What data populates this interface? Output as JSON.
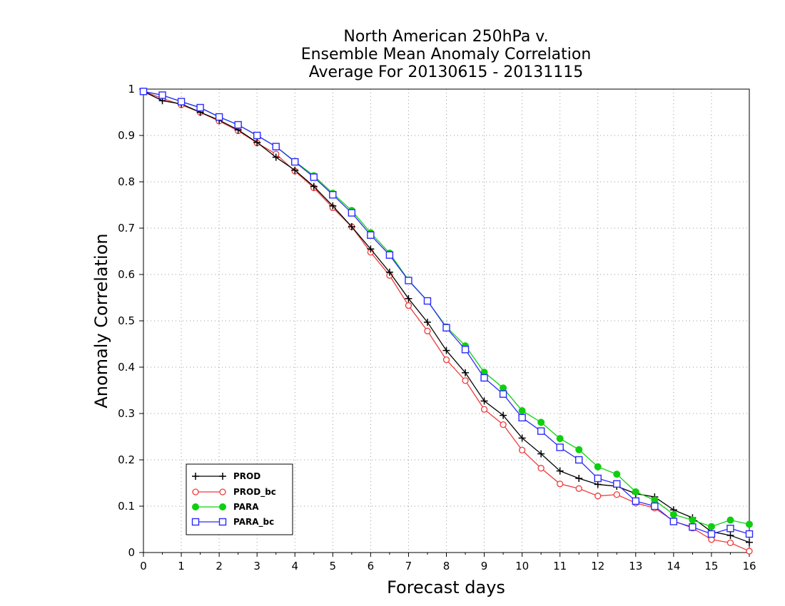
{
  "chart_data": {
    "type": "line",
    "title": [
      "North American 250hPa v.",
      "Ensemble Mean Anomaly Correlation",
      "Average For 20130615 - 20131115"
    ],
    "xlabel": "Forecast days",
    "ylabel": "Anomaly Correlation",
    "xlim": [
      0,
      16
    ],
    "ylim": [
      0,
      1
    ],
    "x_ticks": [
      "0",
      "1",
      "2",
      "3",
      "4",
      "5",
      "6",
      "7",
      "8",
      "9",
      "10",
      "11",
      "12",
      "13",
      "14",
      "15",
      "16"
    ],
    "y_ticks": [
      "0",
      "0.1",
      "0.2",
      "0.3",
      "0.4",
      "0.5",
      "0.6",
      "0.7",
      "0.8",
      "0.9",
      "1"
    ],
    "grid": true,
    "legend_position": "bottom-left",
    "x": [
      0,
      0.5,
      1,
      1.5,
      2,
      2.5,
      3,
      3.5,
      4,
      4.5,
      5,
      5.5,
      6,
      6.5,
      7,
      7.5,
      8,
      8.5,
      9,
      9.5,
      10,
      10.5,
      11,
      11.5,
      12,
      12.5,
      13,
      13.5,
      14,
      14.5,
      15,
      15.5,
      16
    ],
    "series": [
      {
        "name": "PROD",
        "color": "#000000",
        "marker": "plus",
        "values": [
          0.995,
          0.975,
          0.968,
          0.95,
          0.933,
          0.912,
          0.885,
          0.853,
          0.825,
          0.79,
          0.748,
          0.703,
          0.655,
          0.605,
          0.548,
          0.497,
          0.436,
          0.388,
          0.327,
          0.296,
          0.247,
          0.213,
          0.176,
          0.16,
          0.147,
          0.143,
          0.127,
          0.12,
          0.092,
          0.075,
          0.045,
          0.037,
          0.022
        ]
      },
      {
        "name": "PROD_bc",
        "color": "#ef3b3b",
        "marker": "open-circle",
        "values": [
          0.995,
          0.98,
          0.966,
          0.95,
          0.931,
          0.91,
          0.884,
          0.86,
          0.823,
          0.787,
          0.744,
          0.703,
          0.648,
          0.598,
          0.533,
          0.478,
          0.416,
          0.371,
          0.309,
          0.276,
          0.221,
          0.182,
          0.148,
          0.138,
          0.122,
          0.125,
          0.107,
          0.096,
          0.068,
          0.053,
          0.028,
          0.021,
          0.003
        ]
      },
      {
        "name": "PARA",
        "color": "#0fcf0f",
        "marker": "filled-circle",
        "values": [
          0.995,
          0.987,
          0.973,
          0.96,
          0.94,
          0.923,
          0.9,
          0.876,
          0.844,
          0.813,
          0.775,
          0.738,
          0.69,
          0.646,
          0.588,
          0.543,
          0.487,
          0.446,
          0.389,
          0.355,
          0.306,
          0.281,
          0.246,
          0.222,
          0.185,
          0.169,
          0.131,
          0.113,
          0.082,
          0.07,
          0.056,
          0.07,
          0.061
        ]
      },
      {
        "name": "PARA_bc",
        "color": "#2b2bff",
        "marker": "open-square",
        "values": [
          0.995,
          0.987,
          0.973,
          0.96,
          0.94,
          0.923,
          0.9,
          0.876,
          0.843,
          0.81,
          0.772,
          0.733,
          0.685,
          0.642,
          0.587,
          0.543,
          0.485,
          0.438,
          0.377,
          0.342,
          0.291,
          0.262,
          0.227,
          0.2,
          0.16,
          0.148,
          0.111,
          0.1,
          0.067,
          0.055,
          0.04,
          0.052,
          0.04
        ]
      }
    ]
  }
}
